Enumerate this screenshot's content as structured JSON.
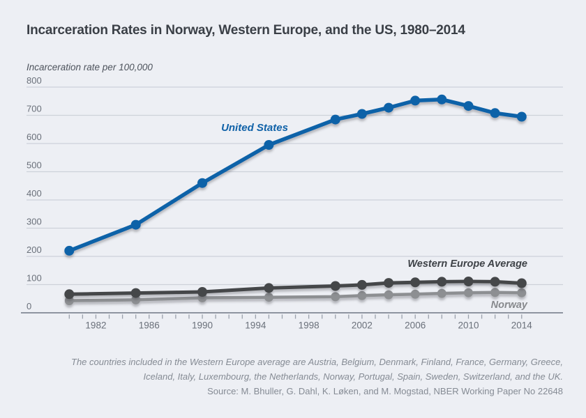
{
  "page": {
    "title": "Incarceration Rates in Norway, Western Europe, and the US, 1980–2014"
  },
  "chart_data": {
    "type": "line",
    "title": "Incarceration Rates in Norway, Western Europe, and the US, 1980–2014",
    "ylabel": "Incarceration rate per 100,000",
    "xlabel": "",
    "x": [
      1980,
      1985,
      1990,
      1995,
      2000,
      2002,
      2004,
      2006,
      2008,
      2010,
      2012,
      2014
    ],
    "series": [
      {
        "name": "United States",
        "color": "#1062a8",
        "values": [
          220,
          312,
          460,
          595,
          685,
          705,
          727,
          752,
          756,
          733,
          708,
          695
        ]
      },
      {
        "name": "Western Europe Average",
        "color": "#454649",
        "values": [
          66,
          70,
          74,
          88,
          95,
          99,
          106,
          108,
          110,
          111,
          110,
          105
        ]
      },
      {
        "name": "Norway",
        "color": "#8d8f92",
        "values": [
          43,
          46,
          53,
          55,
          57,
          61,
          64,
          66,
          69,
          71,
          72,
          71
        ]
      }
    ],
    "x_range": [
      1980,
      2014
    ],
    "xticks_labeled": [
      1982,
      1986,
      1990,
      1994,
      1998,
      2002,
      2006,
      2010,
      2014
    ],
    "yticks": [
      0,
      100,
      200,
      300,
      400,
      500,
      600,
      700,
      800
    ],
    "ylim": [
      0,
      800
    ],
    "grid": true,
    "legend_position": "inline-labels",
    "colors": {
      "background": "#edeff4",
      "gridline": "#cdd1d9",
      "axis": "#8e94a0",
      "tick": "#9aa0ab",
      "tick_label": "#6a707a",
      "title": "#3a3f46"
    }
  },
  "footnote": {
    "line1": "The countries included in the Western Europe average are Austria, Belgium, Denmark, Finland, France, Germany, Greece,",
    "line2": "Iceland, Italy, Luxembourg, the Netherlands, Norway, Portugal, Spain, Sweden, Switzerland, and the UK.",
    "line3": "Source: M. Bhuller, G. Dahl, K. Løken, and M. Mogstad, NBER Working Paper No 22648"
  }
}
